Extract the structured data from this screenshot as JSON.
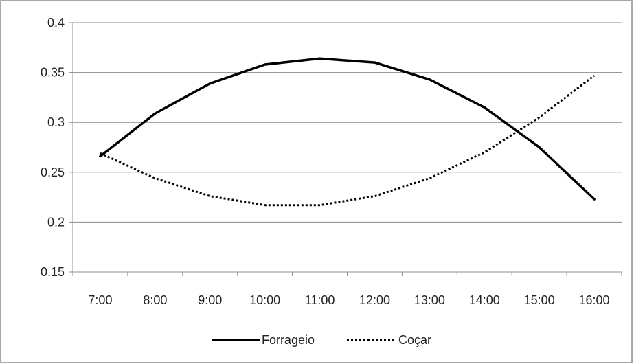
{
  "chart_data": {
    "type": "line",
    "title": "",
    "xlabel": "",
    "ylabel": "",
    "categories": [
      "7:00",
      "8:00",
      "9:00",
      "10:00",
      "11:00",
      "12:00",
      "13:00",
      "14:00",
      "15:00",
      "16:00"
    ],
    "yticks": [
      "0.15",
      "0.2",
      "0.25",
      "0.3",
      "0.35",
      "0.4"
    ],
    "ylim": [
      0.15,
      0.4
    ],
    "grid": true,
    "legend_position": "bottom",
    "series": [
      {
        "name": "Forrageio",
        "style": "solid",
        "color": "#000000",
        "values": [
          0.266,
          0.309,
          0.339,
          0.358,
          0.364,
          0.36,
          0.343,
          0.315,
          0.275,
          0.223
        ]
      },
      {
        "name": "Coçar",
        "style": "dotted",
        "color": "#000000",
        "values": [
          0.269,
          0.244,
          0.226,
          0.217,
          0.217,
          0.226,
          0.244,
          0.27,
          0.305,
          0.347
        ]
      }
    ]
  }
}
